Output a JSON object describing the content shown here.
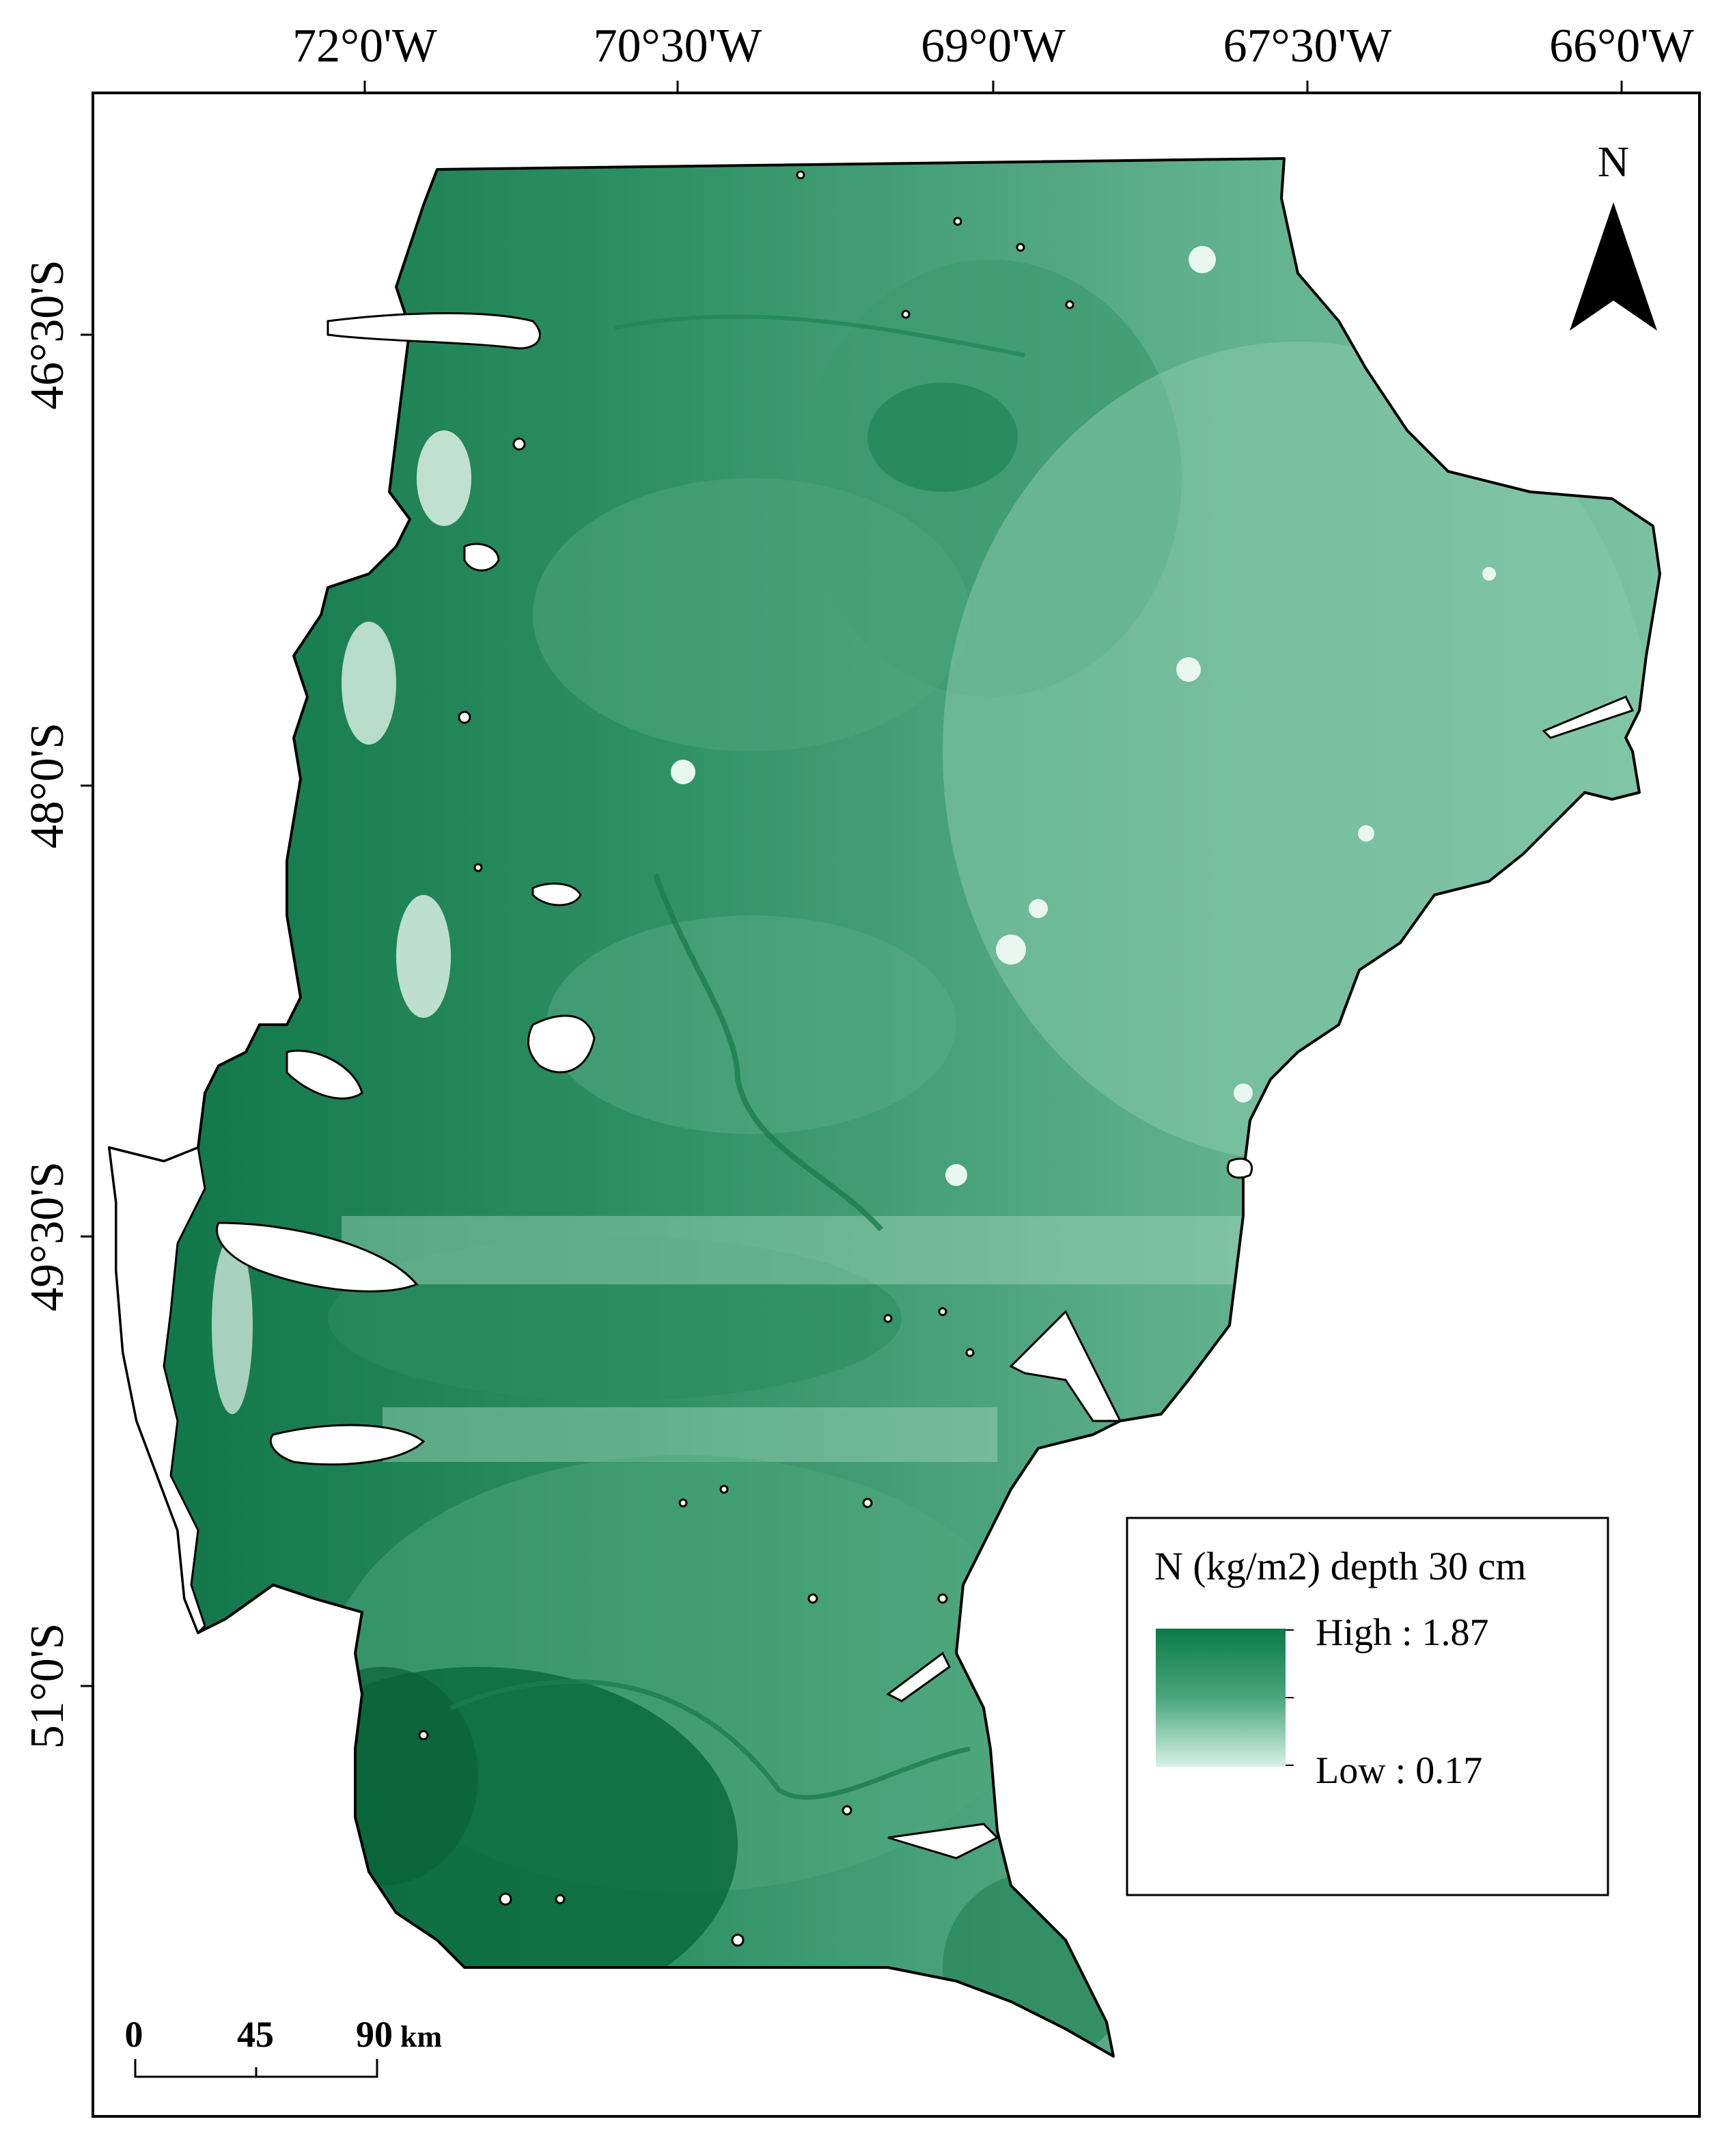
{
  "axes": {
    "longitude_labels": [
      "72°0'W",
      "70°30'W",
      "69°0'W",
      "67°30'W",
      "66°0'W"
    ],
    "latitude_labels": [
      "46°30'S",
      "48°0'S",
      "49°30'S",
      "51°0'S"
    ]
  },
  "north_arrow": {
    "label": "N",
    "icon": "north-arrow-icon"
  },
  "legend": {
    "title": "N (kg/m2) depth 30 cm",
    "high_label": "High : 1.87",
    "low_label": "Low : 0.17",
    "high_color": "#0b7a47",
    "low_color": "#d7f0e6"
  },
  "scale_bar": {
    "ticks": [
      "0",
      "45",
      "90"
    ],
    "unit": "km"
  },
  "colors": {
    "map_fill_mid": "#3f9f76",
    "map_fill_light": "#7cc2a4",
    "map_fill_dark": "#0d7447",
    "outline": "#000000"
  }
}
